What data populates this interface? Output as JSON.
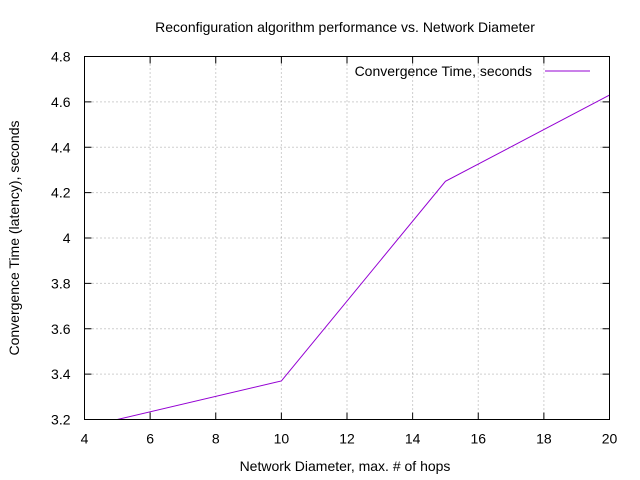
{
  "chart_data": {
    "type": "line",
    "title": "Reconfiguration algorithm performance vs. Network Diameter",
    "xlabel": "Network Diameter, max. # of hops",
    "ylabel": "Convergence Time (latency), seconds",
    "xlim": [
      4,
      20
    ],
    "ylim": [
      3.2,
      4.8
    ],
    "xticks": [
      4,
      6,
      8,
      10,
      12,
      14,
      16,
      18,
      20
    ],
    "yticks": [
      3.2,
      3.4,
      3.6,
      3.8,
      4.0,
      4.2,
      4.4,
      4.6,
      4.8
    ],
    "xtick_labels": [
      "4",
      "6",
      "8",
      "10",
      "12",
      "14",
      "16",
      "18",
      "20"
    ],
    "ytick_labels": [
      "3.2",
      "3.4",
      "3.6",
      "3.8",
      "4",
      "4.2",
      "4.4",
      "4.6",
      "4.8"
    ],
    "grid": true,
    "legend_position": "top-right",
    "series": [
      {
        "name": "Convergence Time, seconds",
        "color": "#9400d3",
        "x": [
          5,
          10,
          15,
          20
        ],
        "y": [
          3.2,
          3.37,
          4.25,
          4.63
        ]
      }
    ]
  }
}
